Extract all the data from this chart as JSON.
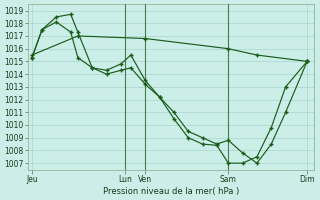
{
  "title": "Pression niveau de la mer( hPa )",
  "bg_color": "#cceee8",
  "grid_color": "#aad4cc",
  "line_color": "#1a5c1a",
  "vline_color": "#4a7a4a",
  "ylim": [
    1006.5,
    1019.5
  ],
  "yticks": [
    1007,
    1008,
    1009,
    1010,
    1011,
    1012,
    1013,
    1014,
    1015,
    1016,
    1017,
    1018,
    1019
  ],
  "xlim": [
    0,
    20
  ],
  "xtick_positions": [
    0.3,
    6.8,
    8.2,
    14.0,
    19.5
  ],
  "xtick_labels": [
    "Jeu",
    "Lun",
    "Ven",
    "Sam",
    "Dim"
  ],
  "vlines": [
    6.8,
    8.2,
    14.0
  ],
  "line1_x": [
    0.3,
    1.0,
    2.0,
    3.0,
    3.5,
    4.5,
    5.5,
    6.5,
    7.2,
    8.2,
    9.2,
    10.2,
    11.2,
    12.2,
    13.2,
    14.0,
    15.0,
    16.0,
    17.0,
    18.0,
    19.5
  ],
  "line1_y": [
    1015.3,
    1017.5,
    1018.1,
    1017.3,
    1015.3,
    1014.5,
    1014.3,
    1014.8,
    1015.5,
    1013.5,
    1012.2,
    1011.0,
    1009.5,
    1009.0,
    1008.5,
    1008.8,
    1007.8,
    1007.0,
    1008.5,
    1011.0,
    1015.0
  ],
  "line2_x": [
    0.3,
    1.0,
    2.0,
    3.0,
    3.5,
    4.5,
    5.5,
    6.5,
    7.2,
    8.2,
    9.2,
    10.2,
    11.2,
    12.2,
    13.2,
    14.0,
    15.0,
    16.0,
    17.0,
    18.0,
    19.5
  ],
  "line2_y": [
    1015.3,
    1017.5,
    1018.5,
    1018.7,
    1017.3,
    1014.5,
    1014.0,
    1014.3,
    1014.5,
    1013.2,
    1012.2,
    1010.5,
    1009.0,
    1008.5,
    1008.4,
    1007.0,
    1007.0,
    1007.5,
    1009.8,
    1013.0,
    1015.0
  ],
  "line3_x": [
    0.3,
    3.5,
    8.2,
    14.0,
    16.0,
    19.5
  ],
  "line3_y": [
    1015.5,
    1017.0,
    1016.8,
    1016.0,
    1015.5,
    1015.0
  ]
}
